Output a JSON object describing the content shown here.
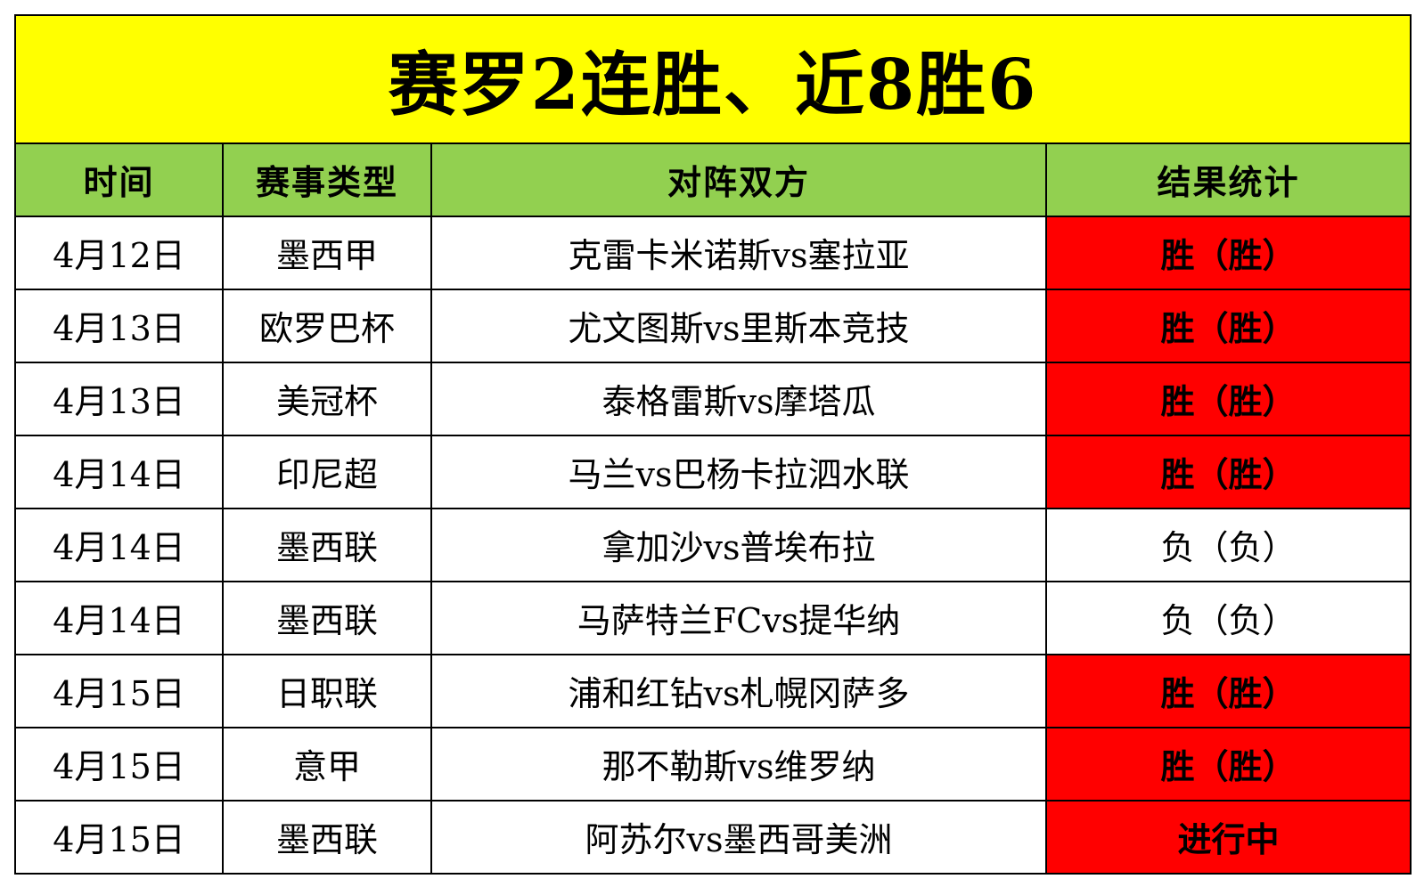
{
  "title": "赛罗2连胜、近8胜6",
  "headers": [
    "时间",
    "赛事类型",
    "对阵双方",
    "结果统计"
  ],
  "rows": [
    {
      "date": "4月12日",
      "league": "墨西甲",
      "match": "克雷卡米诺斯vs塞拉亚",
      "result": "胜（胜）",
      "status": "win"
    },
    {
      "date": "4月13日",
      "league": "欧罗巴杯",
      "match": "尤文图斯vs里斯本竞技",
      "result": "胜（胜）",
      "status": "win"
    },
    {
      "date": "4月13日",
      "league": "美冠杯",
      "match": "泰格雷斯vs摩塔瓜",
      "result": "胜（胜）",
      "status": "win"
    },
    {
      "date": "4月14日",
      "league": "印尼超",
      "match": "马兰vs巴杨卡拉泗水联",
      "result": "胜（胜）",
      "status": "win"
    },
    {
      "date": "4月14日",
      "league": "墨西联",
      "match": "拿加沙vs普埃布拉",
      "result": "负（负）",
      "status": "loss"
    },
    {
      "date": "4月14日",
      "league": "墨西联",
      "match": "马萨特兰FCvs提华纳",
      "result": "负（负）",
      "status": "loss"
    },
    {
      "date": "4月15日",
      "league": "日职联",
      "match": "浦和红钻vs札幌冈萨多",
      "result": "胜（胜）",
      "status": "win"
    },
    {
      "date": "4月15日",
      "league": "意甲",
      "match": "那不勒斯vs维罗纳",
      "result": "胜（胜）",
      "status": "win"
    },
    {
      "date": "4月15日",
      "league": "墨西联",
      "match": "阿苏尔vs墨西哥美洲",
      "result": "进行中",
      "status": "live"
    }
  ],
  "colors": {
    "title_bg": "#ffff00",
    "header_bg": "#92d050",
    "win_bg": "#ff0000",
    "live_bg": "#ff0000",
    "loss_bg": "#ffffff"
  }
}
